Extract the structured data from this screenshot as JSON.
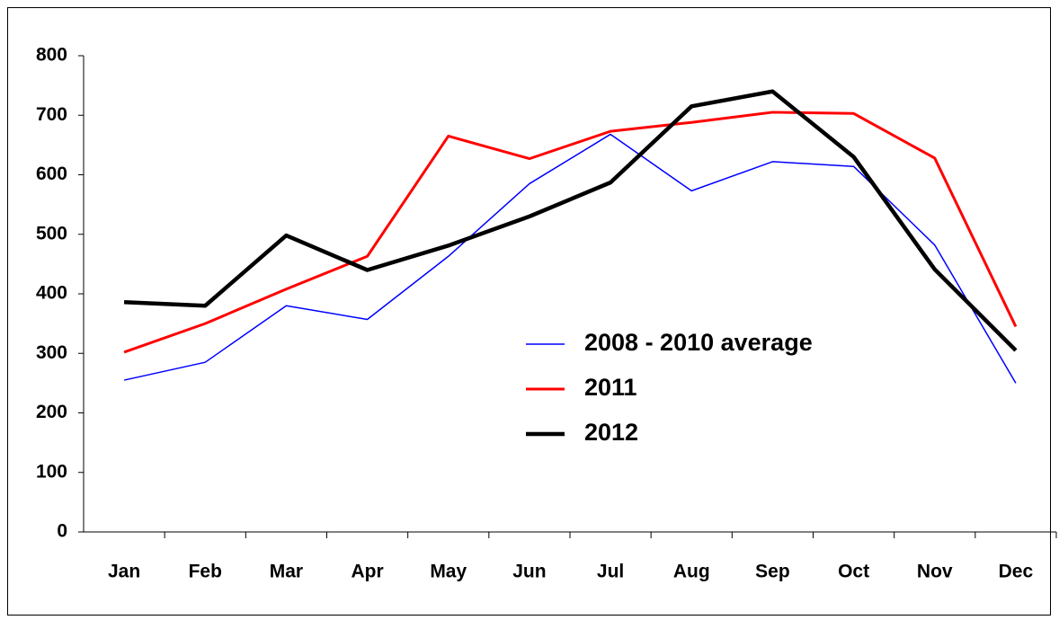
{
  "chart_data": {
    "type": "line",
    "categories": [
      "Jan",
      "Feb",
      "Mar",
      "Apr",
      "May",
      "Jun",
      "Jul",
      "Aug",
      "Sep",
      "Oct",
      "Nov",
      "Dec"
    ],
    "series": [
      {
        "name": "2008 - 2010 average",
        "color": "#0000ff",
        "values": [
          255,
          285,
          380,
          357,
          463,
          585,
          668,
          573,
          622,
          614,
          482,
          250
        ]
      },
      {
        "name": "2011",
        "color": "#ff0000",
        "values": [
          302,
          350,
          408,
          463,
          665,
          627,
          673,
          688,
          705,
          703,
          628,
          345
        ]
      },
      {
        "name": "2012",
        "color": "#000000",
        "values": [
          386,
          380,
          498,
          440,
          481,
          530,
          587,
          715,
          740,
          630,
          441,
          305
        ]
      }
    ],
    "ylim": [
      0,
      800
    ],
    "yticks": [
      0,
      100,
      200,
      300,
      400,
      500,
      600,
      700,
      800
    ],
    "grid": false
  }
}
